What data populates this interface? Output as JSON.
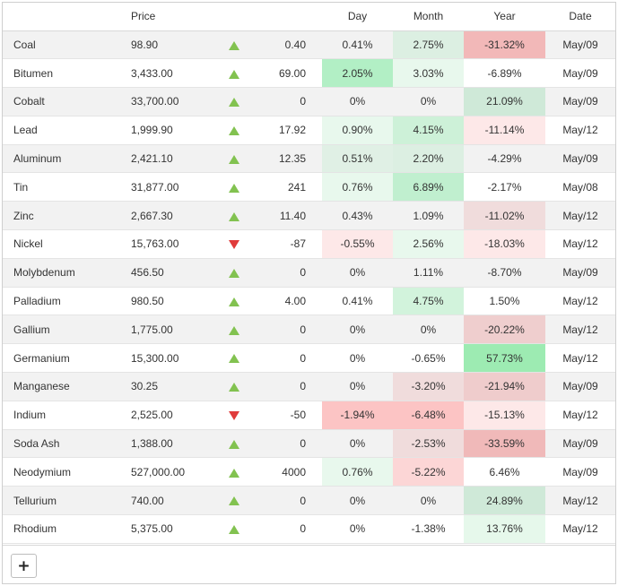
{
  "headers": {
    "name": "",
    "price": "Price",
    "arrow": "",
    "change": "",
    "day": "Day",
    "month": "Month",
    "year": "Year",
    "date": "Date"
  },
  "colors": {
    "up_arrow": "#82c250",
    "down_arrow": "#e03b3b",
    "strong_green": "#9dedb4",
    "medium_green": "#c5ecd3",
    "light_green": "#e4f8ea",
    "strong_red": "#f2b8b8",
    "medium_red": "#f5d2d2",
    "light_red": "#fde8e8"
  },
  "rows": [
    {
      "name": "Coal",
      "price": "98.90",
      "direction": "up",
      "change": "0.40",
      "day": "0.41%",
      "month": "2.75%",
      "year": "-31.32%",
      "date": "May/09",
      "day_bg": "",
      "month_bg": "#dcefe2",
      "year_bg": "#f2b8b8"
    },
    {
      "name": "Bitumen",
      "price": "3,433.00",
      "direction": "up",
      "change": "69.00",
      "day": "2.05%",
      "month": "3.03%",
      "year": "-6.89%",
      "date": "May/09",
      "day_bg": "#b2efc5",
      "month_bg": "#e8f8ed",
      "year_bg": ""
    },
    {
      "name": "Cobalt",
      "price": "33,700.00",
      "direction": "up",
      "change": "0",
      "day": "0%",
      "month": "0%",
      "year": "21.09%",
      "date": "May/09",
      "day_bg": "",
      "month_bg": "",
      "year_bg": "#cfe9d8"
    },
    {
      "name": "Lead",
      "price": "1,999.90",
      "direction": "up",
      "change": "17.92",
      "day": "0.90%",
      "month": "4.15%",
      "year": "-11.14%",
      "date": "May/12",
      "day_bg": "#e8f8ed",
      "month_bg": "#cdf1d8",
      "year_bg": "#fde8e8"
    },
    {
      "name": "Aluminum",
      "price": "2,421.10",
      "direction": "up",
      "change": "12.35",
      "day": "0.51%",
      "month": "2.20%",
      "year": "-4.29%",
      "date": "May/09",
      "day_bg": "#e0f0e5",
      "month_bg": "#dcefe2",
      "year_bg": ""
    },
    {
      "name": "Tin",
      "price": "31,877.00",
      "direction": "up",
      "change": "241",
      "day": "0.76%",
      "month": "6.89%",
      "year": "-2.17%",
      "date": "May/08",
      "day_bg": "#e8f8ed",
      "month_bg": "#c0efcf",
      "year_bg": ""
    },
    {
      "name": "Zinc",
      "price": "2,667.30",
      "direction": "up",
      "change": "11.40",
      "day": "0.43%",
      "month": "1.09%",
      "year": "-11.02%",
      "date": "May/12",
      "day_bg": "",
      "month_bg": "",
      "year_bg": "#f0dcdc"
    },
    {
      "name": "Nickel",
      "price": "15,763.00",
      "direction": "down",
      "change": "-87",
      "day": "-0.55%",
      "month": "2.56%",
      "year": "-18.03%",
      "date": "May/12",
      "day_bg": "#fde8e8",
      "month_bg": "#e8f8ed",
      "year_bg": "#fde8e8"
    },
    {
      "name": "Molybdenum",
      "price": "456.50",
      "direction": "up",
      "change": "0",
      "day": "0%",
      "month": "1.11%",
      "year": "-8.70%",
      "date": "May/09",
      "day_bg": "",
      "month_bg": "",
      "year_bg": ""
    },
    {
      "name": "Palladium",
      "price": "980.50",
      "direction": "up",
      "change": "4.00",
      "day": "0.41%",
      "month": "4.75%",
      "year": "1.50%",
      "date": "May/12",
      "day_bg": "",
      "month_bg": "#d2f3dc",
      "year_bg": ""
    },
    {
      "name": "Gallium",
      "price": "1,775.00",
      "direction": "up",
      "change": "0",
      "day": "0%",
      "month": "0%",
      "year": "-20.22%",
      "date": "May/12",
      "day_bg": "",
      "month_bg": "",
      "year_bg": "#efcece"
    },
    {
      "name": "Germanium",
      "price": "15,300.00",
      "direction": "up",
      "change": "0",
      "day": "0%",
      "month": "-0.65%",
      "year": "57.73%",
      "date": "May/12",
      "day_bg": "",
      "month_bg": "",
      "year_bg": "#9debb2"
    },
    {
      "name": "Manganese",
      "price": "30.25",
      "direction": "up",
      "change": "0",
      "day": "0%",
      "month": "-3.20%",
      "year": "-21.94%",
      "date": "May/09",
      "day_bg": "",
      "month_bg": "#f0dcdc",
      "year_bg": "#efcccc"
    },
    {
      "name": "Indium",
      "price": "2,525.00",
      "direction": "down",
      "change": "-50",
      "day": "-1.94%",
      "month": "-6.48%",
      "year": "-15.13%",
      "date": "May/12",
      "day_bg": "#fcc4c4",
      "month_bg": "#fcc4c4",
      "year_bg": "#fde8e8"
    },
    {
      "name": "Soda Ash",
      "price": "1,388.00",
      "direction": "up",
      "change": "0",
      "day": "0%",
      "month": "-2.53%",
      "year": "-33.59%",
      "date": "May/09",
      "day_bg": "",
      "month_bg": "#f0dcdc",
      "year_bg": "#f0b9b9"
    },
    {
      "name": "Neodymium",
      "price": "527,000.00",
      "direction": "up",
      "change": "4000",
      "day": "0.76%",
      "month": "-5.22%",
      "year": "6.46%",
      "date": "May/09",
      "day_bg": "#e8f8ed",
      "month_bg": "#fcd6d6",
      "year_bg": ""
    },
    {
      "name": "Tellurium",
      "price": "740.00",
      "direction": "up",
      "change": "0",
      "day": "0%",
      "month": "0%",
      "year": "24.89%",
      "date": "May/12",
      "day_bg": "",
      "month_bg": "",
      "year_bg": "#cfe9d8"
    },
    {
      "name": "Rhodium",
      "price": "5,375.00",
      "direction": "up",
      "change": "0",
      "day": "0%",
      "month": "-1.38%",
      "year": "13.76%",
      "date": "May/12",
      "day_bg": "",
      "month_bg": "",
      "year_bg": "#e6f8eb"
    }
  ],
  "footer": {
    "add_label": "+",
    "add_icon": "plus-icon"
  }
}
